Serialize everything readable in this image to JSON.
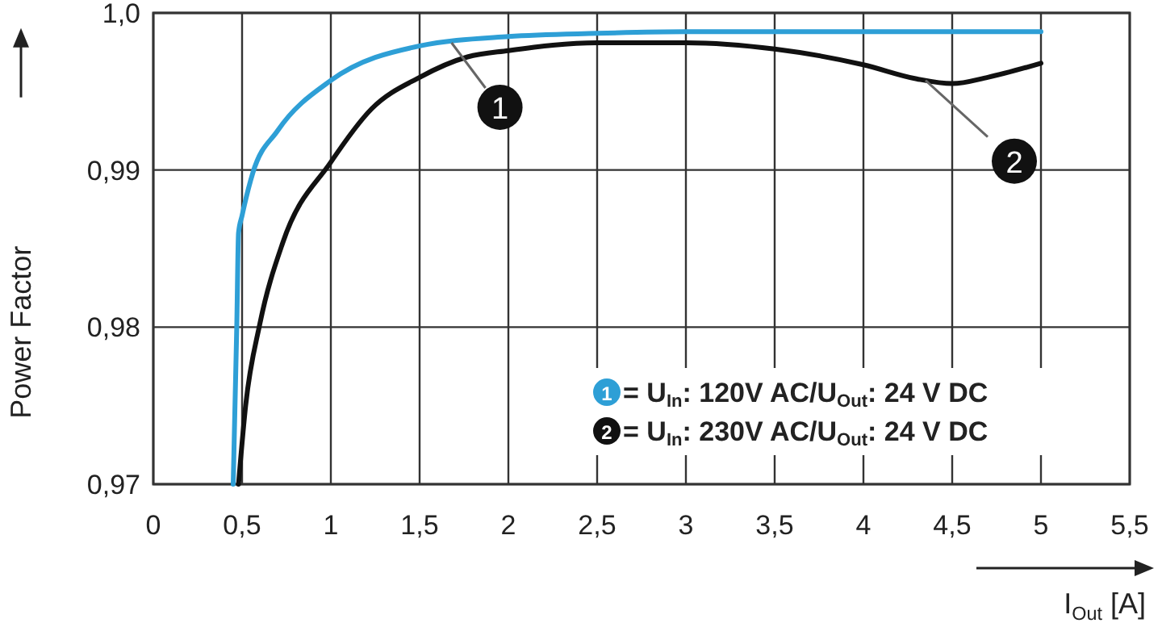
{
  "chart_data": {
    "type": "line",
    "xlabel": "I$_{Out}$ [A]",
    "ylabel": "Power Factor",
    "xlim": [
      0,
      5.5
    ],
    "ylim": [
      0.97,
      1.0
    ],
    "xticks": [
      0,
      {
        "value": 0.5,
        "label": "0,5"
      },
      1,
      {
        "value": 1.5,
        "label": "1,5"
      },
      2,
      {
        "value": 2.5,
        "label": "2,5"
      },
      3,
      {
        "value": 3.5,
        "label": "3,5"
      },
      4,
      {
        "value": 4.5,
        "label": "4,5"
      },
      5,
      {
        "value": 5.5,
        "label": "5,5"
      }
    ],
    "yticks": [
      {
        "value": 0.97,
        "label": "0,97"
      },
      {
        "value": 0.98,
        "label": "0,98"
      },
      {
        "value": 0.99,
        "label": "0,99"
      },
      {
        "value": 1.0,
        "label": "1,0"
      }
    ],
    "grid": true,
    "legend": "bottom right",
    "series": [
      {
        "name": "= U$_{In}$: 120V AC/U$_{Out}$: 24 V DC",
        "color": "#2e9fd6",
        "x": [
          0.45,
          0.46,
          0.47,
          0.48,
          0.5,
          0.56,
          0.7,
          1.0,
          1.5,
          2.0,
          2.5,
          3.0,
          4.0,
          5.0
        ],
        "values": [
          0.97,
          0.975,
          0.98,
          0.986,
          0.9871,
          0.9898,
          0.9925,
          0.9957,
          0.9979,
          0.9985,
          0.9987,
          0.9988,
          0.9988,
          0.9988
        ]
      },
      {
        "name": "= U$_{In}$: 230V AC/U$_{Out}$: 24 V DC",
        "color": "#111111",
        "x": [
          0.48,
          0.52,
          0.6,
          0.73,
          1.0,
          1.23,
          1.5,
          1.77,
          2.0,
          2.5,
          3.0,
          3.5,
          4.0,
          4.3,
          4.5,
          4.7,
          5.0
        ],
        "values": [
          0.97,
          0.975,
          0.9802,
          0.9854,
          0.9905,
          0.9939,
          0.9959,
          0.9972,
          0.9976,
          0.9981,
          0.9981,
          0.9977,
          0.9967,
          0.9958,
          0.9955,
          0.9959,
          0.9968
        ]
      }
    ],
    "annotations": [
      {
        "text": "1",
        "x": 1.68,
        "y": 0.9981
      },
      {
        "text": "2",
        "x": 4.35,
        "y": 0.9957
      }
    ]
  }
}
